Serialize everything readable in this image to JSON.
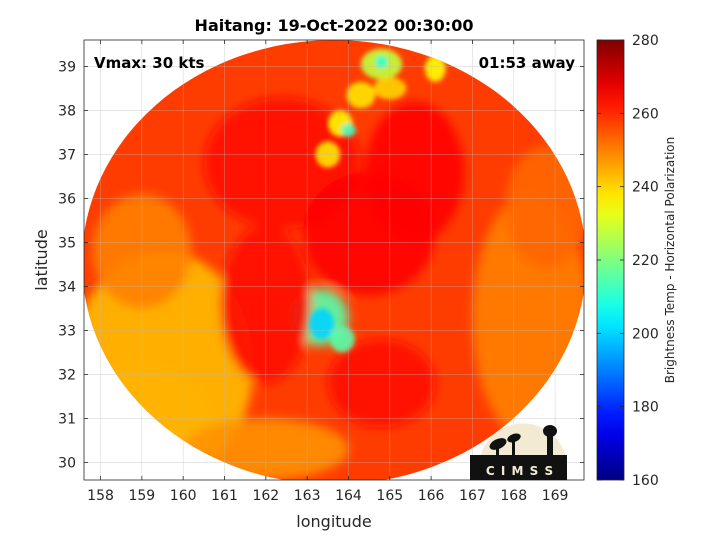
{
  "chart_data": {
    "type": "heatmap",
    "title": "Haitang: 19-Oct-2022 00:30:00",
    "xlabel": "longitude",
    "ylabel": "latitude",
    "xlim": [
      157.6,
      169.7
    ],
    "ylim": [
      29.6,
      39.6
    ],
    "xticks": [
      158,
      159,
      160,
      161,
      162,
      163,
      164,
      165,
      166,
      167,
      168,
      169
    ],
    "yticks": [
      30,
      31,
      32,
      33,
      34,
      35,
      36,
      37,
      38,
      39
    ],
    "grid": true,
    "annotations": {
      "vmax": "Vmax: 30 kts",
      "time_offset": "01:53 away"
    },
    "colorbar": {
      "label": "Brightness Temp - Horizontal Polarization",
      "min": 160,
      "max": 280,
      "ticks": [
        160,
        180,
        200,
        220,
        240,
        260,
        280
      ],
      "colormap": "jet"
    },
    "swath": {
      "center_lon": 163.65,
      "center_lat": 34.55,
      "radius_lon": 6.1,
      "radius_lat": 5.05,
      "background_value": 258
    },
    "features": [
      {
        "kind": "blob",
        "lon": 163.3,
        "lat": 33.3,
        "rlon": 0.7,
        "rlat": 0.65,
        "value": 215
      },
      {
        "kind": "blob",
        "lon": 163.35,
        "lat": 33.15,
        "rlon": 0.3,
        "rlat": 0.35,
        "value": 200
      },
      {
        "kind": "blob",
        "lon": 163.85,
        "lat": 32.8,
        "rlon": 0.3,
        "rlat": 0.3,
        "value": 215
      },
      {
        "kind": "blob",
        "lon": 164.8,
        "lat": 39.05,
        "rlon": 0.5,
        "rlat": 0.35,
        "value": 228
      },
      {
        "kind": "blob",
        "lon": 164.8,
        "lat": 39.1,
        "rlon": 0.15,
        "rlat": 0.15,
        "value": 210
      },
      {
        "kind": "blob",
        "lon": 166.1,
        "lat": 38.95,
        "rlon": 0.25,
        "rlat": 0.3,
        "value": 235
      },
      {
        "kind": "blob",
        "lon": 164.3,
        "lat": 38.35,
        "rlon": 0.35,
        "rlat": 0.3,
        "value": 238
      },
      {
        "kind": "blob",
        "lon": 163.8,
        "lat": 37.7,
        "rlon": 0.3,
        "rlat": 0.3,
        "value": 236
      },
      {
        "kind": "blob",
        "lon": 164.0,
        "lat": 37.55,
        "rlon": 0.18,
        "rlat": 0.15,
        "value": 212
      },
      {
        "kind": "blob",
        "lon": 163.5,
        "lat": 37.0,
        "rlon": 0.3,
        "rlat": 0.3,
        "value": 238
      },
      {
        "kind": "blob",
        "lon": 165.0,
        "lat": 38.5,
        "rlon": 0.4,
        "rlat": 0.25,
        "value": 240
      },
      {
        "kind": "blob",
        "lon": 159.5,
        "lat": 32.2,
        "rlon": 2.2,
        "rlat": 2.6,
        "value": 243
      },
      {
        "kind": "blob",
        "lon": 158.9,
        "lat": 30.8,
        "rlon": 1.8,
        "rlat": 1.4,
        "value": 244
      },
      {
        "kind": "blob",
        "lon": 162.0,
        "lat": 30.3,
        "rlon": 2.0,
        "rlat": 0.7,
        "value": 248
      },
      {
        "kind": "blob",
        "lon": 159.0,
        "lat": 34.8,
        "rlon": 1.2,
        "rlat": 1.3,
        "value": 250
      },
      {
        "kind": "blob",
        "lon": 168.4,
        "lat": 33.3,
        "rlon": 1.4,
        "rlat": 2.8,
        "value": 250
      },
      {
        "kind": "blob",
        "lon": 168.8,
        "lat": 35.8,
        "rlon": 1.0,
        "rlat": 1.4,
        "value": 253
      },
      {
        "kind": "blob",
        "lon": 162.4,
        "lat": 36.8,
        "rlon": 1.9,
        "rlat": 1.5,
        "value": 264
      },
      {
        "kind": "blob",
        "lon": 164.5,
        "lat": 35.2,
        "rlon": 1.6,
        "rlat": 1.4,
        "value": 265
      },
      {
        "kind": "blob",
        "lon": 165.6,
        "lat": 36.6,
        "rlon": 1.2,
        "rlat": 1.6,
        "value": 265
      },
      {
        "kind": "blob",
        "lon": 162.0,
        "lat": 33.6,
        "rlon": 1.1,
        "rlat": 1.8,
        "value": 264
      },
      {
        "kind": "blob",
        "lon": 164.8,
        "lat": 31.8,
        "rlon": 1.3,
        "rlat": 1.0,
        "value": 263
      }
    ]
  },
  "logo": {
    "text": "CIMSS",
    "display": "C I M S S",
    "background_color": "#f2ead2",
    "foreground_color": "#111111"
  }
}
